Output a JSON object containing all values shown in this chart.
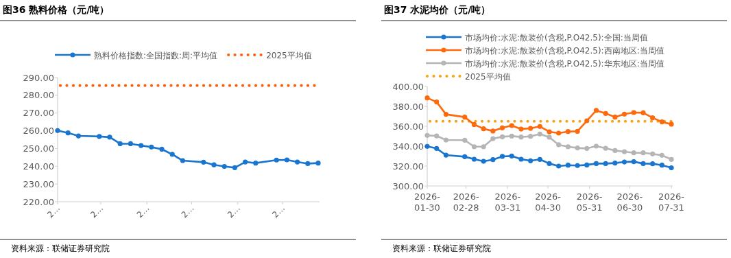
{
  "chart_data": [
    {
      "type": "line",
      "title": "图36 熟料价格（元/吨）",
      "legend": "top",
      "marker": "circle",
      "grid": false,
      "x": [
        "2026-01-30",
        "2026-02-06",
        "2026-02-13",
        "2026-02-27",
        "2026-03-06",
        "2026-03-13",
        "2026-03-20",
        "2026-03-27",
        "2026-04-03",
        "2026-04-10",
        "2026-04-17",
        "2026-04-24",
        "2026-05-08",
        "2026-05-15",
        "2026-05-22",
        "2026-05-29",
        "2026-06-05",
        "2026-06-12",
        "2026-06-26",
        "2026-07-03",
        "2026-07-10",
        "2026-07-17",
        "2026-07-24"
      ],
      "series": [
        {
          "name": "熟料价格指数:全国指数:周:平均值",
          "color": "#1a75cf",
          "values": [
            260.1,
            258.8,
            257.1,
            256.8,
            256.4,
            252.7,
            252.7,
            251.7,
            250.8,
            249.6,
            246.7,
            243.2,
            242.3,
            240.8,
            239.9,
            239.2,
            242.4,
            241.8,
            243.5,
            243.6,
            242.4,
            241.5,
            241.8
          ]
        }
      ],
      "ref_lines": [
        {
          "axis": "y",
          "value": 285.5,
          "label": "2025平均值",
          "color": "#fe5f0a",
          "line_style": "dotted"
        }
      ],
      "xlim": [
        "2026-01-30",
        "2026-07-24"
      ],
      "xticks": [
        {
          "value": "2026-01-30",
          "label": "2…"
        },
        {
          "value": "2026-02-28",
          "label": "2…"
        },
        {
          "value": "2026-03-31",
          "label": "2…"
        },
        {
          "value": "2026-04-30",
          "label": "2…"
        },
        {
          "value": "2026-05-31",
          "label": "2…"
        },
        {
          "value": "2026-06-30",
          "label": "2…"
        }
      ],
      "ylim": [
        220,
        290
      ],
      "yticks": [
        {
          "value": 220,
          "label": "220.00"
        },
        {
          "value": 230,
          "label": "230.00"
        },
        {
          "value": 240,
          "label": "240.00"
        },
        {
          "value": 250,
          "label": "250.00"
        },
        {
          "value": 260,
          "label": "260.00"
        },
        {
          "value": 270,
          "label": "270.00"
        },
        {
          "value": 280,
          "label": "280.00"
        },
        {
          "value": 290,
          "label": "290.00"
        }
      ],
      "annotations": [
        "资料来源：联储证券研究院"
      ]
    },
    {
      "type": "line",
      "title": "图37 水泥均价（元/吨）",
      "legend": "top",
      "marker": "circle",
      "grid": false,
      "x": [
        "2026-01-30",
        "2026-02-06",
        "2026-02-13",
        "2026-02-27",
        "2026-03-06",
        "2026-03-13",
        "2026-03-20",
        "2026-03-27",
        "2026-04-03",
        "2026-04-10",
        "2026-04-17",
        "2026-04-24",
        "2026-05-01",
        "2026-05-08",
        "2026-05-15",
        "2026-05-22",
        "2026-05-29",
        "2026-06-05",
        "2026-06-12",
        "2026-06-19",
        "2026-06-26",
        "2026-07-03",
        "2026-07-10",
        "2026-07-17",
        "2026-07-24",
        "2026-07-31"
      ],
      "series": [
        {
          "name": "市场均价:水泥:散装价(含税,P.O42.5):全国:当周值",
          "color": "#1a75cf",
          "values": [
            339.8,
            337.7,
            331.0,
            329.4,
            326.9,
            324.8,
            326.4,
            329.7,
            330.1,
            326.9,
            325.3,
            326.7,
            322.5,
            320.0,
            320.9,
            320.5,
            321.1,
            322.5,
            322.5,
            323.0,
            324.1,
            324.4,
            322.5,
            322.3,
            320.9,
            318.2
          ]
        },
        {
          "name": "市场均价:水泥:散装价(含税,P.O42.5):西南地区:当周值",
          "color": "#fd6a0d",
          "values": [
            388.5,
            384.4,
            372.0,
            369.2,
            361.8,
            357.5,
            355.2,
            358.4,
            360.7,
            357.2,
            357.9,
            359.8,
            354.5,
            353.1,
            354.7,
            354.9,
            365.5,
            375.9,
            372.9,
            369.2,
            372.2,
            373.8,
            373.6,
            368.5,
            364.4,
            362.1
          ]
        },
        {
          "name": "市场均价:水泥:散装价(含税,P.O42.5):华东地区:当周值",
          "color": "#b5b5b5",
          "values": [
            350.8,
            350.3,
            346.2,
            346.0,
            339.5,
            339.5,
            347.6,
            349.4,
            350.1,
            349.2,
            349.9,
            352.2,
            349.0,
            341.4,
            339.5,
            338.2,
            337.7,
            340.0,
            337.9,
            335.6,
            334.5,
            333.3,
            333.3,
            332.2,
            330.8,
            326.7
          ]
        }
      ],
      "ref_lines": [
        {
          "axis": "y",
          "value": 365,
          "label": "2025平均值",
          "color": "#f9a20f",
          "line_style": "dotted"
        }
      ],
      "xlim": [
        "2026-01-30",
        "2026-07-31"
      ],
      "xticks": [
        "2026-01-30",
        "2026-02-28",
        "2026-03-31",
        "2026-04-30",
        "2026-05-31",
        "2026-06-30",
        "2026-07-31"
      ],
      "ylim": [
        300,
        400
      ],
      "yticks": [
        {
          "value": 300,
          "label": "300.00"
        },
        {
          "value": 320,
          "label": "320.00"
        },
        {
          "value": 340,
          "label": "340.00"
        },
        {
          "value": 360,
          "label": "360.00"
        },
        {
          "value": 380,
          "label": "380.00"
        },
        {
          "value": 400,
          "label": "400.00"
        }
      ],
      "annotations": [
        "资料来源：联储证券研究院"
      ]
    }
  ]
}
